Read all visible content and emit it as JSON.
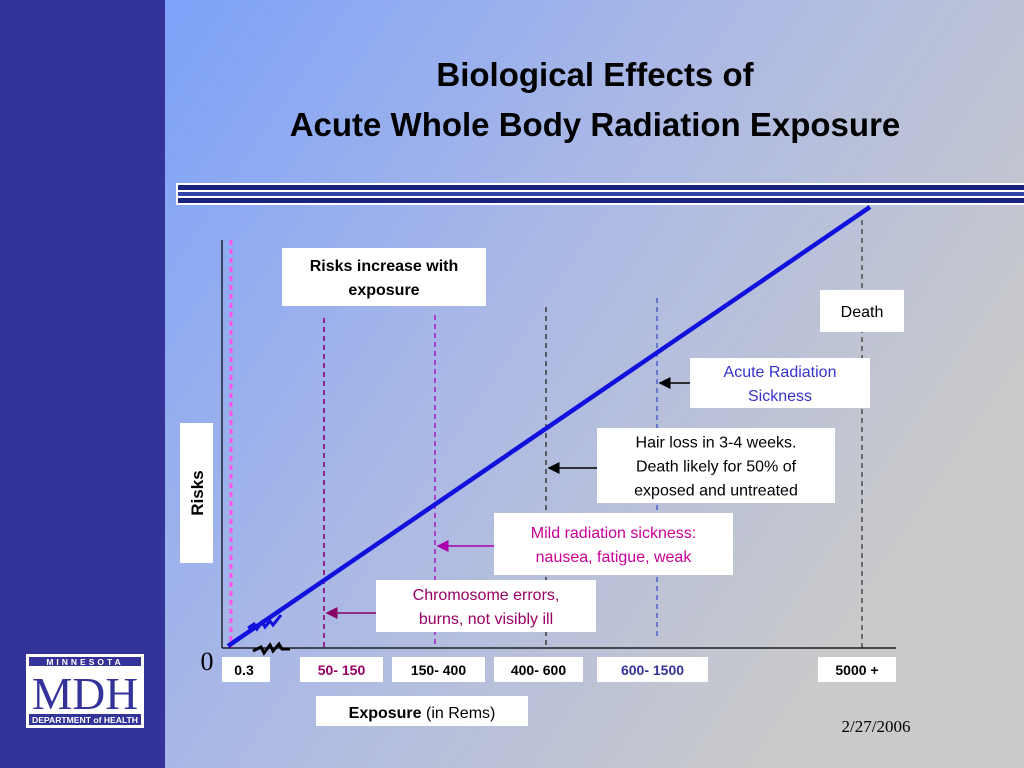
{
  "title": [
    "Biological Effects of",
    "Acute Whole Body Radiation Exposure"
  ],
  "risk_box": [
    "Risks increase with",
    "exposure"
  ],
  "y_label": "Risks",
  "origin": "0",
  "ranges": [
    "0.3",
    "50- 150",
    "150- 400",
    "400- 600",
    "600- 1500",
    "5000 +"
  ],
  "effects": [
    {
      "lines": [
        "Death"
      ]
    },
    {
      "lines": [
        "Acute Radiation",
        "Sickness"
      ]
    },
    {
      "lines": [
        "Hair loss in 3-4 weeks.",
        "Death likely for 50% of",
        "exposed and untreated"
      ]
    },
    {
      "lines": [
        "Mild radiation sickness:",
        "nausea, fatigue, weak"
      ]
    },
    {
      "lines": [
        "Chromosome errors,",
        "burns, not visibly ill"
      ]
    }
  ],
  "x_label": {
    "bold": "Exposure",
    "rest": "(in Rems)"
  },
  "date": "2/27/2006",
  "logo": {
    "top": "MINNESOTA",
    "main": "MDH",
    "bottom": "DEPARTMENT of HEALTH"
  }
}
